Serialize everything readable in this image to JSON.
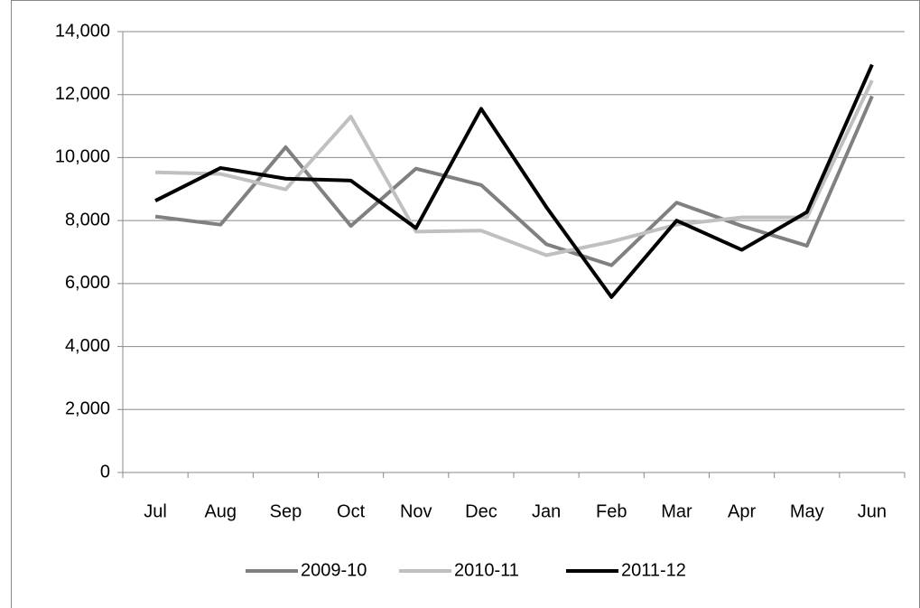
{
  "chart_data": {
    "type": "line",
    "categories": [
      "Jul",
      "Aug",
      "Sep",
      "Oct",
      "Nov",
      "Dec",
      "Jan",
      "Feb",
      "Mar",
      "Apr",
      "May",
      "Jun"
    ],
    "series": [
      {
        "name": "2009-10",
        "color": "#808080",
        "values": [
          8130,
          7870,
          10330,
          7830,
          9650,
          9130,
          7250,
          6580,
          8570,
          7830,
          7200,
          11950
        ]
      },
      {
        "name": "2010-11",
        "color": "#c0c0c0",
        "values": [
          9530,
          9480,
          8990,
          11300,
          7650,
          7680,
          6900,
          7330,
          7870,
          8100,
          8100,
          12450
        ]
      },
      {
        "name": "2011-12",
        "color": "#000000",
        "values": [
          8630,
          9670,
          9330,
          9270,
          7760,
          11550,
          8430,
          5570,
          8000,
          7070,
          8270,
          12950
        ]
      }
    ],
    "ylim": [
      0,
      14000
    ],
    "yticks": [
      0,
      {
        "value": 2000,
        "label": "2,000"
      },
      {
        "value": 4000,
        "label": "4,000"
      },
      {
        "value": 6000,
        "label": "6,000"
      },
      {
        "value": 8000,
        "label": "8,000"
      },
      {
        "value": 10000,
        "label": "10,000"
      },
      {
        "value": 12000,
        "label": "12,000"
      },
      {
        "value": 14000,
        "label": "14,000"
      }
    ],
    "grid": true,
    "legend": "bottom"
  }
}
